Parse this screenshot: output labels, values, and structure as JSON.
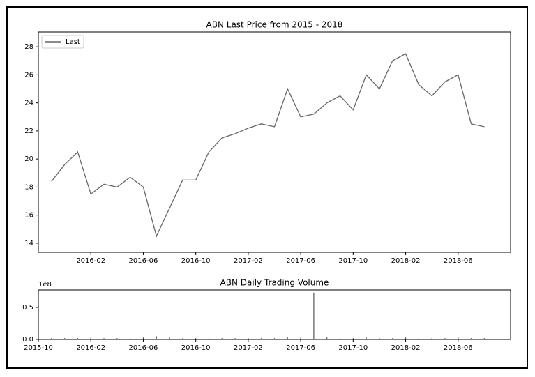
{
  "chart_data": [
    {
      "type": "line",
      "title": "ABN Last Price from 2015 - 2018",
      "x": [
        "2015-11",
        "2015-12",
        "2016-01",
        "2016-02",
        "2016-03",
        "2016-04",
        "2016-05",
        "2016-06",
        "2016-07",
        "2016-08",
        "2016-09",
        "2016-10",
        "2016-11",
        "2016-12",
        "2017-01",
        "2017-02",
        "2017-03",
        "2017-04",
        "2017-05",
        "2017-06",
        "2017-07",
        "2017-08",
        "2017-09",
        "2017-10",
        "2017-11",
        "2017-12",
        "2018-01",
        "2018-02",
        "2018-03",
        "2018-04",
        "2018-05",
        "2018-06",
        "2018-07",
        "2018-08"
      ],
      "series": [
        {
          "name": "Last",
          "color": "#666666",
          "values": [
            18.4,
            19.6,
            20.5,
            17.5,
            18.2,
            18.0,
            18.7,
            18.0,
            14.5,
            16.5,
            18.5,
            18.5,
            20.5,
            21.5,
            21.8,
            22.2,
            22.5,
            22.3,
            25.0,
            23.0,
            23.2,
            24.0,
            24.5,
            23.5,
            26.0,
            25.0,
            27.0,
            27.5,
            25.3,
            24.5,
            25.5,
            26.0,
            22.5,
            22.3
          ]
        }
      ],
      "xlim": [
        "2015-10",
        "2018-10"
      ],
      "xticks": [
        "2016-02",
        "2016-06",
        "2016-10",
        "2017-02",
        "2017-06",
        "2017-10",
        "2018-02",
        "2018-06"
      ],
      "ylim": [
        13.35,
        29.05
      ],
      "yticks": [
        14,
        16,
        18,
        20,
        22,
        24,
        26,
        28
      ],
      "legend": "upper left"
    },
    {
      "type": "bar",
      "title": "ABN Daily Trading Volume",
      "offset_label": "1e8",
      "x": [
        "2015-11",
        "2015-12",
        "2016-01",
        "2016-02",
        "2016-03",
        "2016-04",
        "2016-05",
        "2016-06",
        "2016-07",
        "2016-08",
        "2016-09",
        "2016-10",
        "2016-11",
        "2016-12",
        "2017-01",
        "2017-02",
        "2017-03",
        "2017-04",
        "2017-05",
        "2017-06",
        "2017-07",
        "2017-08",
        "2017-09",
        "2017-10",
        "2017-11",
        "2017-12",
        "2018-01",
        "2018-02",
        "2018-03",
        "2018-04",
        "2018-05",
        "2018-06",
        "2018-07",
        "2018-08"
      ],
      "series": [
        {
          "name": "Volume",
          "color": "#555555",
          "values": [
            0.02,
            0.02,
            0.02,
            0.03,
            0.02,
            0.02,
            0.02,
            0.03,
            0.05,
            0.03,
            0.02,
            0.02,
            0.02,
            0.02,
            0.02,
            0.02,
            0.02,
            0.02,
            0.03,
            0.03,
            0.73,
            0.03,
            0.02,
            0.02,
            0.03,
            0.02,
            0.02,
            0.03,
            0.02,
            0.02,
            0.02,
            0.04,
            0.02,
            0.02
          ]
        }
      ],
      "xlim": [
        "2015-10",
        "2018-10"
      ],
      "xticks": [
        "2015-10",
        "2016-02",
        "2016-06",
        "2016-10",
        "2017-02",
        "2017-06",
        "2017-10",
        "2018-02",
        "2018-06"
      ],
      "ylim": [
        0,
        0.772
      ],
      "yticks": [
        {
          "value": 0,
          "label": "0.0"
        },
        {
          "value": 0.5,
          "label": "0.5"
        }
      ]
    }
  ]
}
